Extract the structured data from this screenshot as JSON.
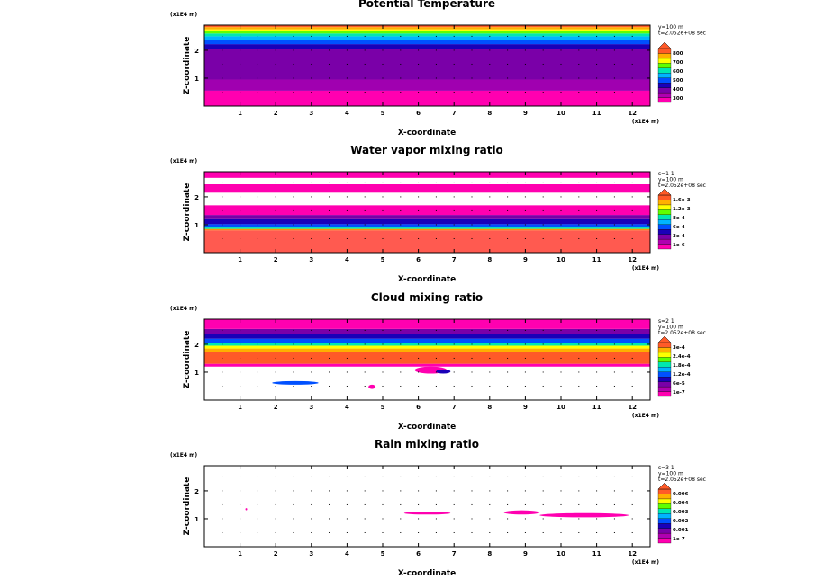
{
  "chart_data": [
    {
      "type": "heatmap",
      "title": "Potential Temperature",
      "xlabel": "X-coordinate",
      "ylabel": "Z-coordinate",
      "x_unit": "(x1E4 m)",
      "z_unit": "(x1E4 m)",
      "xlim": [
        0,
        12.5
      ],
      "zlim": [
        0,
        2.9
      ],
      "x_ticks": [
        "1",
        "2",
        "3",
        "4",
        "5",
        "6",
        "7",
        "8",
        "9",
        "10",
        "11",
        "12"
      ],
      "z_ticks": [
        "1",
        "2"
      ],
      "info": [
        "y=100 m",
        "t=2.052e+08 sec"
      ],
      "legend_labels": [
        "800",
        "700",
        "600",
        "500",
        "400",
        "300"
      ],
      "levels": [
        {
          "color": "#ff00b0",
          "z": [
            0,
            0.55
          ]
        },
        {
          "color": "#a000b0",
          "z": [
            0.55,
            0.95
          ]
        },
        {
          "color": "#7a00a8",
          "z": [
            0.95,
            2.05
          ]
        },
        {
          "color": "#1a00b8",
          "z": [
            2.05,
            2.22
          ]
        },
        {
          "color": "#0050ff",
          "z": [
            2.22,
            2.38
          ]
        },
        {
          "color": "#00b4ff",
          "z": [
            2.38,
            2.5
          ]
        },
        {
          "color": "#00e8b0",
          "z": [
            2.5,
            2.6
          ]
        },
        {
          "color": "#60ff00",
          "z": [
            2.6,
            2.68
          ]
        },
        {
          "color": "#ffff00",
          "z": [
            2.68,
            2.75
          ]
        },
        {
          "color": "#ffb000",
          "z": [
            2.75,
            2.83
          ]
        },
        {
          "color": "#ff5a28",
          "z": [
            2.83,
            2.9
          ]
        }
      ],
      "legend_colors": [
        "#ff00b0",
        "#b000b0",
        "#7a00a8",
        "#1a00b8",
        "#0050ff",
        "#00b4ff",
        "#00e8b0",
        "#60ff00",
        "#ffff00",
        "#ffb000",
        "#ff5a28"
      ],
      "patches": []
    },
    {
      "type": "heatmap",
      "title": "Water vapor mixing ratio",
      "xlabel": "X-coordinate",
      "ylabel": "Z-coordinate",
      "x_unit": "(x1E4 m)",
      "z_unit": "(x1E4 m)",
      "xlim": [
        0,
        12.5
      ],
      "zlim": [
        0,
        2.9
      ],
      "x_ticks": [
        "1",
        "2",
        "3",
        "4",
        "5",
        "6",
        "7",
        "8",
        "9",
        "10",
        "11",
        "12"
      ],
      "z_ticks": [
        "1",
        "2"
      ],
      "info": [
        "s=1 1",
        "y=100 m",
        "t=2.052e+08 sec"
      ],
      "legend_labels": [
        "1.6e-3",
        "1.2e-3",
        "8e-4",
        "6e-4",
        "3e-4",
        "1e-6"
      ],
      "levels": [
        {
          "color": "#ff5a50",
          "z": [
            0,
            0.8
          ]
        },
        {
          "color": "#ff9000",
          "z": [
            0.8,
            0.85
          ]
        },
        {
          "color": "#00e8b0",
          "z": [
            0.85,
            0.9
          ]
        },
        {
          "color": "#0050ff",
          "z": [
            0.9,
            1.02
          ]
        },
        {
          "color": "#1a00b8",
          "z": [
            1.02,
            1.2
          ]
        },
        {
          "color": "#7a00a8",
          "z": [
            1.2,
            1.35
          ]
        },
        {
          "color": "#ff00b0",
          "z": [
            1.35,
            1.7
          ]
        },
        {
          "color": "#ffffff",
          "z": [
            1.7,
            2.15
          ]
        },
        {
          "color": "#ff00b0",
          "z": [
            2.15,
            2.45
          ]
        },
        {
          "color": "#ffffff",
          "z": [
            2.45,
            2.68
          ]
        },
        {
          "color": "#ff00b0",
          "z": [
            2.68,
            2.9
          ]
        }
      ],
      "legend_colors": [
        "#ff00b0",
        "#b000b0",
        "#7a00a8",
        "#1a00b8",
        "#0050ff",
        "#00b4ff",
        "#00e8b0",
        "#60ff00",
        "#ffff00",
        "#ffb000",
        "#ff5a28"
      ],
      "patches": []
    },
    {
      "type": "heatmap",
      "title": "Cloud mixing ratio",
      "xlabel": "X-coordinate",
      "ylabel": "Z-coordinate",
      "x_unit": "(x1E4 m)",
      "z_unit": "(x1E4 m)",
      "xlim": [
        0,
        12.5
      ],
      "zlim": [
        0,
        2.9
      ],
      "x_ticks": [
        "1",
        "2",
        "3",
        "4",
        "5",
        "6",
        "7",
        "8",
        "9",
        "10",
        "11",
        "12"
      ],
      "z_ticks": [
        "1",
        "2"
      ],
      "info": [
        "s=2 1",
        "y=100 m",
        "t=2.052e+08 sec"
      ],
      "legend_labels": [
        "3e-4",
        "2.4e-4",
        "1.8e-4",
        "1.2e-4",
        "6e-5",
        "1e-7"
      ],
      "levels": [
        {
          "color": "#ffffff",
          "z": [
            0,
            1.2
          ]
        },
        {
          "color": "#ff00b0",
          "z": [
            1.2,
            1.3
          ]
        },
        {
          "color": "#ff5a28",
          "z": [
            1.3,
            1.72
          ]
        },
        {
          "color": "#ffb000",
          "z": [
            1.72,
            1.85
          ]
        },
        {
          "color": "#ffff00",
          "z": [
            1.85,
            1.95
          ]
        },
        {
          "color": "#00e8b0",
          "z": [
            1.95,
            2.05
          ]
        },
        {
          "color": "#0050ff",
          "z": [
            2.05,
            2.2
          ]
        },
        {
          "color": "#1a00b8",
          "z": [
            2.2,
            2.38
          ]
        },
        {
          "color": "#7a00a8",
          "z": [
            2.38,
            2.55
          ]
        },
        {
          "color": "#ff00b0",
          "z": [
            2.55,
            2.9
          ]
        }
      ],
      "legend_colors": [
        "#ff00b0",
        "#b000b0",
        "#7a00a8",
        "#1a00b8",
        "#0050ff",
        "#00b4ff",
        "#00e8b0",
        "#60ff00",
        "#ffff00",
        "#ffb000",
        "#ff5a28"
      ],
      "patches": [
        {
          "color": "#0050ff",
          "x0": 1.9,
          "x1": 3.2,
          "z0": 0.55,
          "z1": 0.68
        },
        {
          "color": "#ff00b0",
          "x0": 5.9,
          "x1": 6.8,
          "z0": 0.95,
          "z1": 1.2
        },
        {
          "color": "#1a00b8",
          "x0": 6.5,
          "x1": 6.9,
          "z0": 0.95,
          "z1": 1.1
        },
        {
          "color": "#ff00b0",
          "x0": 4.6,
          "x1": 4.8,
          "z0": 0.4,
          "z1": 0.55
        }
      ]
    },
    {
      "type": "heatmap",
      "title": "Rain mixing ratio",
      "xlabel": "X-coordinate",
      "ylabel": "Z-coordinate",
      "x_unit": "(x1E4 m)",
      "z_unit": "(x1E4 m)",
      "xlim": [
        0,
        12.5
      ],
      "zlim": [
        0,
        2.9
      ],
      "x_ticks": [
        "1",
        "2",
        "3",
        "4",
        "5",
        "6",
        "7",
        "8",
        "9",
        "10",
        "11",
        "12"
      ],
      "z_ticks": [
        "1",
        "2"
      ],
      "info": [
        "s=3 1",
        "y=100 m",
        "t=2.052e+08 sec"
      ],
      "legend_labels": [
        "0.006",
        "0.004",
        "0.003",
        "0.002",
        "0.001",
        "1e-7"
      ],
      "levels": [],
      "legend_colors": [
        "#ff00b0",
        "#b000b0",
        "#7a00a8",
        "#1a00b8",
        "#0050ff",
        "#00b4ff",
        "#00e8b0",
        "#60ff00",
        "#ffff00",
        "#ffb000",
        "#ff5a28"
      ],
      "patches": [
        {
          "color": "#ff00b0",
          "x0": 5.6,
          "x1": 6.9,
          "z0": 1.15,
          "z1": 1.25
        },
        {
          "color": "#ff00b0",
          "x0": 8.4,
          "x1": 9.4,
          "z0": 1.15,
          "z1": 1.3
        },
        {
          "color": "#ff00b0",
          "x0": 9.4,
          "x1": 11.9,
          "z0": 1.05,
          "z1": 1.2
        },
        {
          "color": "#ff00b0",
          "x0": 1.15,
          "x1": 1.2,
          "z0": 1.3,
          "z1": 1.38
        }
      ]
    }
  ]
}
